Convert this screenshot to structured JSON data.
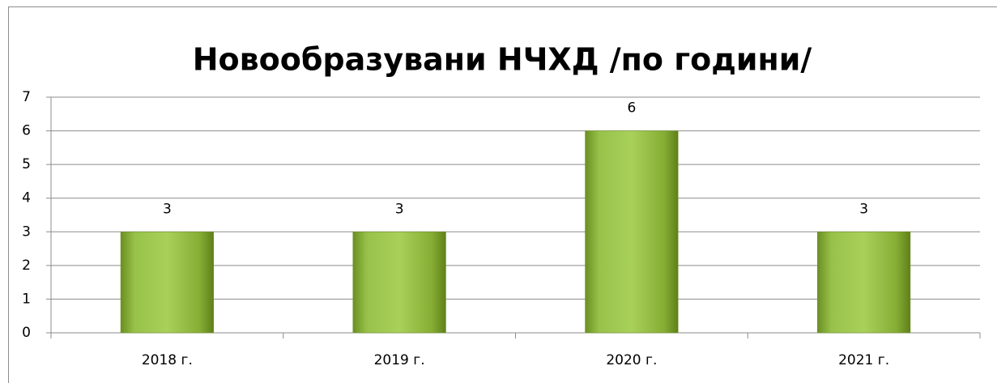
{
  "chart_data": {
    "type": "bar",
    "title": "Новообразувани НЧХД /по години/",
    "categories": [
      "2018 г.",
      "2019 г.",
      "2020 г.",
      "2021 г."
    ],
    "values": [
      3,
      3,
      6,
      3
    ],
    "color": "#8db83b",
    "ylim": [
      0,
      7
    ],
    "yticks": [
      0,
      1,
      2,
      3,
      4,
      5,
      6,
      7
    ],
    "grid": true
  }
}
